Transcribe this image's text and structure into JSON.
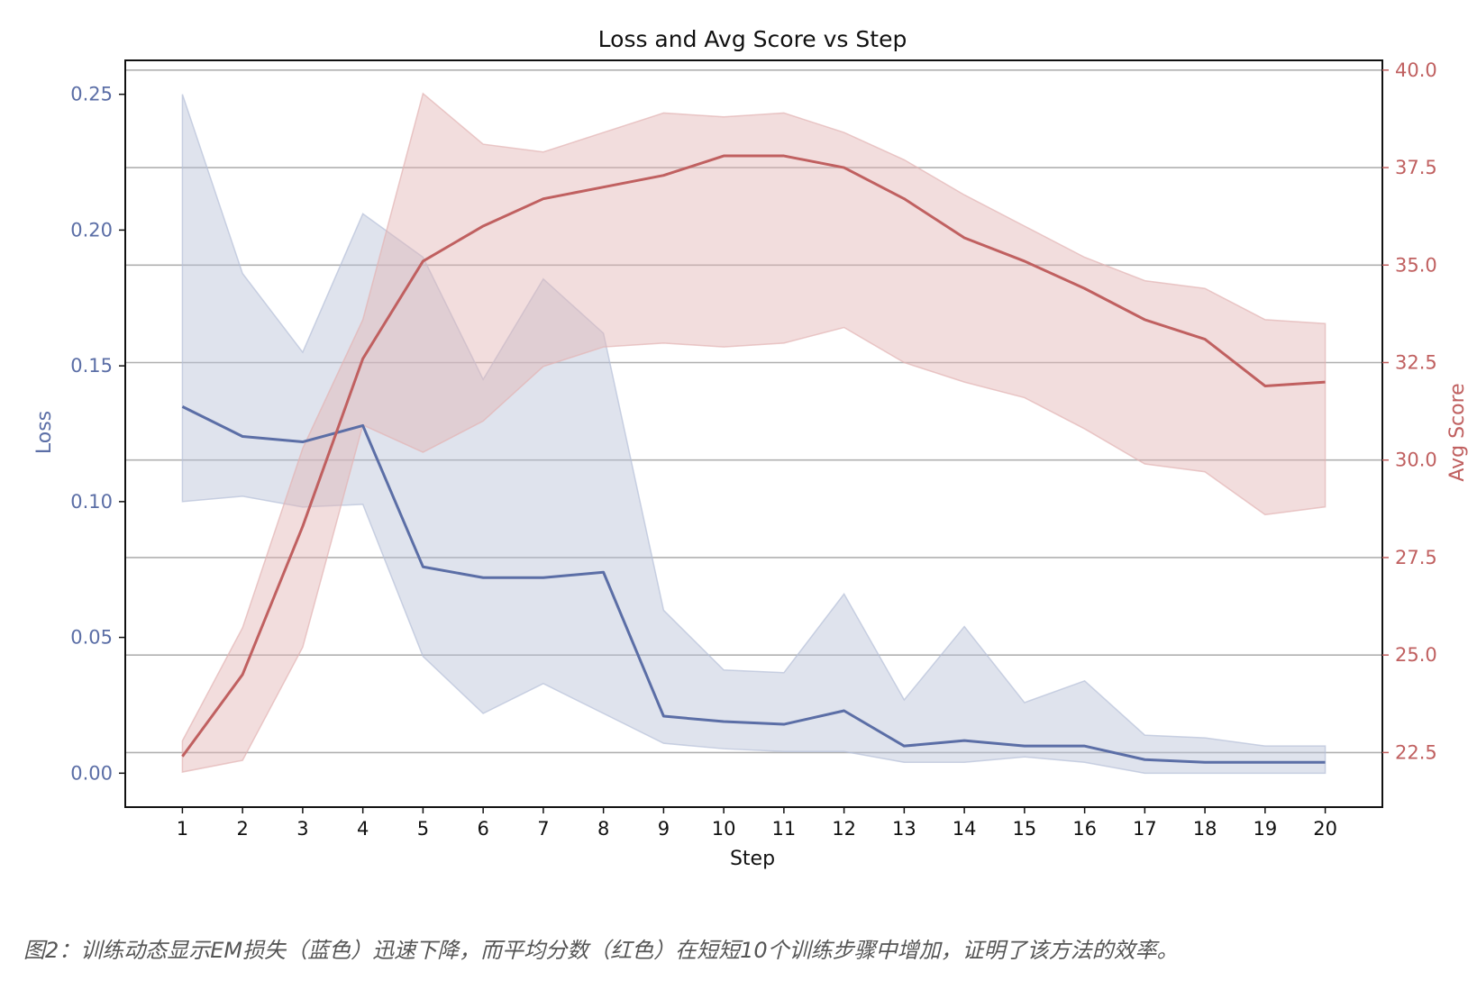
{
  "caption": "图2：训练动态显示EM损失（蓝色）迅速下降，而平均分数（红色）在短短10个训练步骤中增加，证明了该方法的效率。",
  "chart_data": {
    "type": "line",
    "title": "Loss and Avg Score vs Step",
    "xlabel": "Step",
    "x": [
      1,
      2,
      3,
      4,
      5,
      6,
      7,
      8,
      9,
      10,
      11,
      12,
      13,
      14,
      15,
      16,
      17,
      18,
      19,
      20
    ],
    "xlim": [
      0.05,
      20.95
    ],
    "y_left": {
      "label": "Loss",
      "ticks": [
        0.0,
        0.05,
        0.1,
        0.15,
        0.2,
        0.25
      ],
      "tick_labels": [
        "0.00",
        "0.05",
        "0.10",
        "0.15",
        "0.20",
        "0.25"
      ],
      "range": [
        -0.0125,
        0.2625
      ]
    },
    "y_right": {
      "label": "Avg Score",
      "ticks": [
        22.5,
        25.0,
        27.5,
        30.0,
        32.5,
        35.0,
        37.5,
        40.0
      ],
      "tick_labels": [
        "22.5",
        "25.0",
        "27.5",
        "30.0",
        "32.5",
        "35.0",
        "37.5",
        "40.0"
      ],
      "range": [
        21.1,
        40.25
      ]
    },
    "grid": "horizontal lines at right-axis ticks",
    "series": [
      {
        "name": "Loss",
        "axis": "left",
        "color": "#5b6ea6",
        "band_color": "#b7c1d8",
        "values": [
          0.135,
          0.124,
          0.122,
          0.128,
          0.076,
          0.072,
          0.072,
          0.074,
          0.021,
          0.019,
          0.018,
          0.023,
          0.01,
          0.012,
          0.01,
          0.01,
          0.005,
          0.004,
          0.004,
          0.004
        ],
        "upper": [
          0.25,
          0.184,
          0.155,
          0.206,
          0.19,
          0.145,
          0.182,
          0.162,
          0.06,
          0.038,
          0.037,
          0.066,
          0.027,
          0.054,
          0.026,
          0.034,
          0.014,
          0.013,
          0.01,
          0.01
        ],
        "lower": [
          0.1,
          0.102,
          0.098,
          0.099,
          0.043,
          0.022,
          0.033,
          0.022,
          0.011,
          0.009,
          0.008,
          0.008,
          0.004,
          0.004,
          0.006,
          0.004,
          0.0,
          0.0,
          0.0,
          0.0
        ]
      },
      {
        "name": "Avg Score",
        "axis": "right",
        "color": "#c06060",
        "band_color": "#e3b3b3",
        "values": [
          22.4,
          24.5,
          28.3,
          32.6,
          35.1,
          36.0,
          36.7,
          37.0,
          37.3,
          37.8,
          37.8,
          37.5,
          36.7,
          35.7,
          35.1,
          34.4,
          33.6,
          33.1,
          31.9,
          32.0
        ],
        "upper": [
          22.8,
          25.7,
          30.3,
          33.6,
          39.4,
          38.1,
          37.9,
          38.4,
          38.9,
          38.8,
          38.9,
          38.4,
          37.7,
          36.8,
          36.0,
          35.2,
          34.6,
          34.4,
          33.6,
          33.5
        ],
        "lower": [
          22.0,
          22.3,
          25.2,
          30.9,
          30.2,
          31.0,
          32.4,
          32.9,
          33.0,
          32.9,
          33.0,
          33.4,
          32.5,
          32.0,
          31.6,
          30.8,
          29.9,
          29.7,
          28.6,
          28.8
        ]
      }
    ]
  }
}
